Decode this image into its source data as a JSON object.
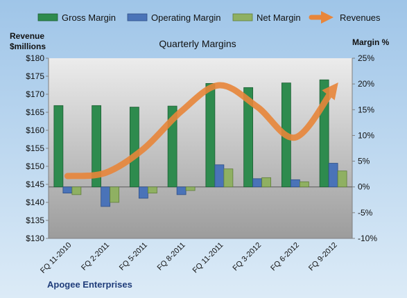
{
  "chart_data": {
    "type": "bar",
    "title": "Quarterly Margins",
    "company": "Apogee Enterprises",
    "left_axis_title_line1": "Revenue",
    "left_axis_title_line2": "$millions",
    "right_axis_title": "Margin %",
    "categories": [
      "FQ 11-2010",
      "FQ 2-2011",
      "FQ 5-2011",
      "FQ 8-2011",
      "FQ 11-2011",
      "FQ 3-2012",
      "FQ 6-2012",
      "FQ 9-2012"
    ],
    "series": [
      {
        "name": "Gross Margin",
        "axis": "right",
        "values": [
          15.8,
          15.8,
          15.5,
          15.7,
          20.1,
          19.3,
          20.2,
          20.8
        ]
      },
      {
        "name": "Operating Margin",
        "axis": "right",
        "values": [
          -1.2,
          -3.8,
          -2.2,
          -1.5,
          4.3,
          1.6,
          1.4,
          4.6
        ]
      },
      {
        "name": "Net Margin",
        "axis": "right",
        "values": [
          -1.5,
          -3.0,
          -1.2,
          -0.7,
          3.5,
          1.8,
          1.0,
          3.1
        ]
      },
      {
        "name": "Revenues",
        "axis": "left",
        "type": "line",
        "values": [
          147.3,
          148.2,
          154.8,
          165.3,
          172.5,
          166.5,
          158.0,
          171.5
        ]
      }
    ],
    "left_axis": {
      "ylim": [
        130,
        180
      ],
      "ticks": [
        130,
        135,
        140,
        145,
        150,
        155,
        160,
        165,
        170,
        175,
        180
      ],
      "tick_labels": [
        "$130",
        "$135",
        "$140",
        "$145",
        "$150",
        "$155",
        "$160",
        "$165",
        "$170",
        "$175",
        "$180"
      ]
    },
    "right_axis": {
      "ylim": [
        -10,
        25
      ],
      "ticks": [
        -10,
        -5,
        0,
        5,
        10,
        15,
        20,
        25
      ],
      "tick_labels": [
        "-10%",
        "-5%",
        "0%",
        "5%",
        "10%",
        "15%",
        "20%",
        "25%"
      ]
    },
    "colors": {
      "gross_margin": "#2e8b4e",
      "operating_margin": "#4a73b8",
      "net_margin": "#8fb062",
      "revenues": "#e8863a",
      "background_top": "#9fc5e8",
      "background_bottom": "#dcebf7",
      "plot_top": "#ececec",
      "plot_bottom": "#9c9c9c",
      "company_label": "#1f3d7a"
    },
    "legend_position": "top",
    "grid": false
  }
}
